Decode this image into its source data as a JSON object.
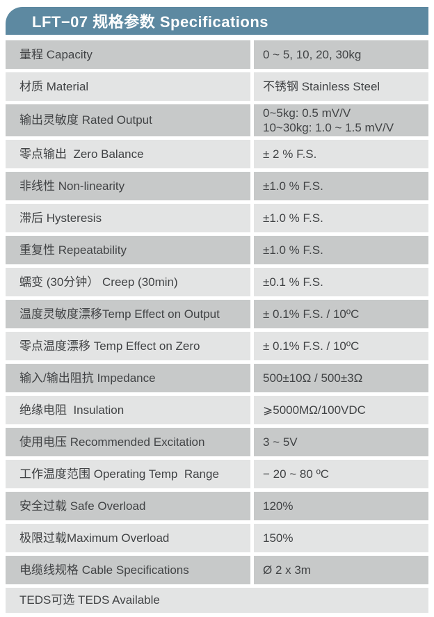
{
  "header": {
    "title": "LFT−07 规格参数 Specifications"
  },
  "colors": {
    "header_bg": "#5d89a1",
    "header_text": "#ffffff",
    "row_dark": "#c7c9c9",
    "row_light": "#e3e4e4",
    "text": "#414345"
  },
  "table": {
    "rows": [
      {
        "label": "量程 Capacity",
        "value": "0 ~ 5, 10, 20, 30kg",
        "shade": "dark"
      },
      {
        "label": "材质 Material",
        "value": "不锈钢 Stainless Steel",
        "shade": "light"
      },
      {
        "label": "输出灵敏度 Rated Output",
        "value": "0~5kg: 0.5 mV/V\n10~30kg: 1.0 ~ 1.5 mV/V",
        "shade": "dark",
        "size": "tall"
      },
      {
        "label": "零点输出  Zero Balance",
        "value": "± 2 % F.S.",
        "shade": "light"
      },
      {
        "label": "非线性 Non-linearity",
        "value": "±1.0 % F.S.",
        "shade": "dark"
      },
      {
        "label": "滞后 Hysteresis",
        "value": "±1.0 % F.S.",
        "shade": "light"
      },
      {
        "label": "重复性 Repeatability",
        "value": "±1.0 % F.S.",
        "shade": "dark"
      },
      {
        "label": "蠕变 (30分钟） Creep (30min)",
        "value": "±0.1 % F.S.",
        "shade": "light"
      },
      {
        "label": "温度灵敏度漂移Temp Effect on Output",
        "value": "± 0.1% F.S. / 10ºC",
        "shade": "dark"
      },
      {
        "label": "零点温度漂移 Temp Effect on Zero",
        "value": "± 0.1% F.S. / 10ºC",
        "shade": "light"
      },
      {
        "label": "输入/输出阻抗 Impedance",
        "value": "500±10Ω / 500±3Ω",
        "shade": "dark"
      },
      {
        "label": "绝缘电阻  Insulation",
        "value": "⩾5000MΩ/100VDC",
        "shade": "light"
      },
      {
        "label": "使用电压 Recommended Excitation",
        "value": "3 ~ 5V",
        "shade": "dark"
      },
      {
        "label": "工作温度范围 Operating Temp  Range",
        "value": "− 20 ~ 80 ºC",
        "shade": "light"
      },
      {
        "label": "安全过载 Safe Overload",
        "value": "120%",
        "shade": "dark"
      },
      {
        "label": "极限过载Maximum Overload",
        "value": "150%",
        "shade": "light"
      },
      {
        "label": "电缆线规格 Cable Specifications",
        "value": "Ø 2 x 3m",
        "shade": "dark"
      },
      {
        "label": "TEDS可选 TEDS Available",
        "value": "",
        "shade": "light",
        "size": "short",
        "full_width": true
      }
    ]
  }
}
